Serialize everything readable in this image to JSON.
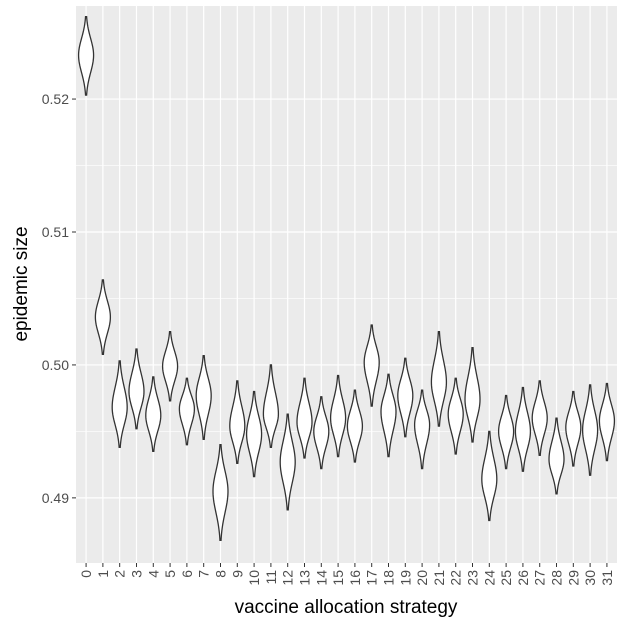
{
  "chart_data": {
    "type": "violin",
    "xlabel": "vaccine allocation strategy",
    "ylabel": "epidemic size",
    "categories": [
      "0",
      "1",
      "2",
      "3",
      "4",
      "5",
      "6",
      "7",
      "8",
      "9",
      "10",
      "11",
      "12",
      "13",
      "14",
      "15",
      "16",
      "17",
      "18",
      "19",
      "20",
      "21",
      "22",
      "23",
      "24",
      "25",
      "26",
      "27",
      "28",
      "29",
      "30",
      "31"
    ],
    "y_ticks": [
      {
        "value": 0.49,
        "label": "0.49"
      },
      {
        "value": 0.5,
        "label": "0.50"
      },
      {
        "value": 0.51,
        "label": "0.51"
      },
      {
        "value": 0.52,
        "label": "0.52"
      }
    ],
    "ylim": [
      0.4851,
      0.527
    ],
    "grid": true,
    "panel_background": "#ebebeb",
    "grid_color": "#ffffff",
    "violin_stroke": "#333333",
    "violins": [
      {
        "min": 0.5203,
        "max": 0.5262,
        "median": 0.5233
      },
      {
        "min": 0.5008,
        "max": 0.5064,
        "median": 0.5036
      },
      {
        "min": 0.4938,
        "max": 0.5003,
        "median": 0.4968
      },
      {
        "min": 0.4952,
        "max": 0.5012,
        "median": 0.498
      },
      {
        "min": 0.4935,
        "max": 0.4991,
        "median": 0.4962
      },
      {
        "min": 0.4973,
        "max": 0.5025,
        "median": 0.4999
      },
      {
        "min": 0.494,
        "max": 0.499,
        "median": 0.4967
      },
      {
        "min": 0.4944,
        "max": 0.5007,
        "median": 0.4977
      },
      {
        "min": 0.4868,
        "max": 0.494,
        "median": 0.4905
      },
      {
        "min": 0.4926,
        "max": 0.4988,
        "median": 0.4954
      },
      {
        "min": 0.4916,
        "max": 0.498,
        "median": 0.4948
      },
      {
        "min": 0.4938,
        "max": 0.5,
        "median": 0.4963
      },
      {
        "min": 0.4891,
        "max": 0.4963,
        "median": 0.4927
      },
      {
        "min": 0.493,
        "max": 0.499,
        "median": 0.4957
      },
      {
        "min": 0.4922,
        "max": 0.4976,
        "median": 0.495
      },
      {
        "min": 0.4931,
        "max": 0.4992,
        "median": 0.496
      },
      {
        "min": 0.4927,
        "max": 0.4981,
        "median": 0.4954
      },
      {
        "min": 0.4969,
        "max": 0.503,
        "median": 0.5002
      },
      {
        "min": 0.4931,
        "max": 0.4993,
        "median": 0.4965
      },
      {
        "min": 0.4946,
        "max": 0.5005,
        "median": 0.4977
      },
      {
        "min": 0.4922,
        "max": 0.4981,
        "median": 0.4955
      },
      {
        "min": 0.4954,
        "max": 0.5025,
        "median": 0.4987
      },
      {
        "min": 0.4933,
        "max": 0.499,
        "median": 0.4963
      },
      {
        "min": 0.4942,
        "max": 0.5013,
        "median": 0.4974
      },
      {
        "min": 0.4883,
        "max": 0.495,
        "median": 0.4914
      },
      {
        "min": 0.4922,
        "max": 0.4977,
        "median": 0.495
      },
      {
        "min": 0.492,
        "max": 0.4983,
        "median": 0.495
      },
      {
        "min": 0.4932,
        "max": 0.4988,
        "median": 0.496
      },
      {
        "min": 0.4903,
        "max": 0.496,
        "median": 0.4929
      },
      {
        "min": 0.4924,
        "max": 0.498,
        "median": 0.4953
      },
      {
        "min": 0.4917,
        "max": 0.4985,
        "median": 0.4951
      },
      {
        "min": 0.4928,
        "max": 0.4986,
        "median": 0.4958
      }
    ]
  }
}
